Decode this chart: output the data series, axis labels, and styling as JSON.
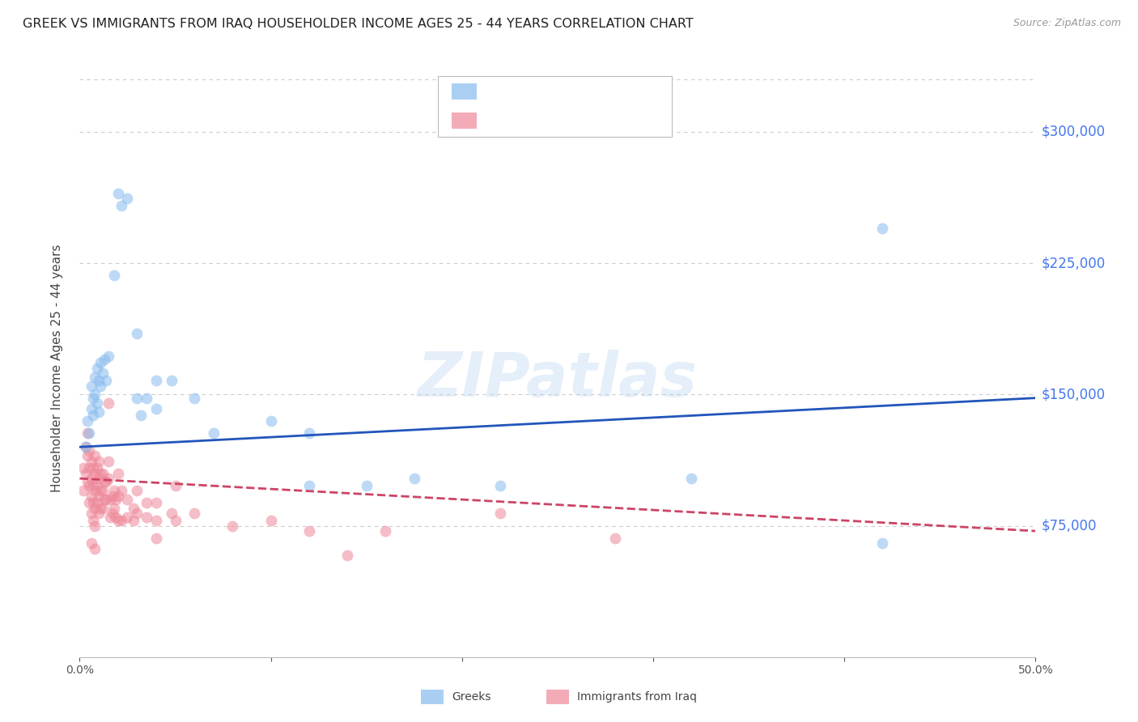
{
  "title": "GREEK VS IMMIGRANTS FROM IRAQ HOUSEHOLDER INCOME AGES 25 - 44 YEARS CORRELATION CHART",
  "source": "Source: ZipAtlas.com",
  "ylabel": "Householder Income Ages 25 - 44 years",
  "ytick_labels": [
    "$75,000",
    "$150,000",
    "$225,000",
    "$300,000"
  ],
  "ytick_values": [
    75000,
    150000,
    225000,
    300000
  ],
  "ylim": [
    0,
    330000
  ],
  "xlim": [
    0.0,
    0.5
  ],
  "background_color": "#ffffff",
  "grid_color": "#cccccc",
  "right_label_color": "#4477ee",
  "greeks_color": "#88bbee",
  "iraq_color": "#ee8899",
  "greeks_line_color": "#2255bb",
  "iraq_line_color": "#cc4466",
  "title_fontsize": 11.5,
  "source_fontsize": 9,
  "tick_label_fontsize": 10,
  "ylabel_fontsize": 11,
  "legend_fontsize": 12,
  "scatter_size": 100,
  "scatter_alpha": 0.55,
  "line_width": 2.0,
  "greeks_points": [
    [
      0.003,
      120000
    ],
    [
      0.004,
      135000
    ],
    [
      0.005,
      128000
    ],
    [
      0.006,
      142000
    ],
    [
      0.006,
      155000
    ],
    [
      0.007,
      148000
    ],
    [
      0.007,
      138000
    ],
    [
      0.008,
      160000
    ],
    [
      0.008,
      150000
    ],
    [
      0.009,
      165000
    ],
    [
      0.009,
      145000
    ],
    [
      0.01,
      158000
    ],
    [
      0.01,
      140000
    ],
    [
      0.011,
      168000
    ],
    [
      0.011,
      155000
    ],
    [
      0.012,
      162000
    ],
    [
      0.013,
      170000
    ],
    [
      0.014,
      158000
    ],
    [
      0.015,
      172000
    ],
    [
      0.02,
      265000
    ],
    [
      0.022,
      258000
    ],
    [
      0.025,
      262000
    ],
    [
      0.018,
      218000
    ],
    [
      0.03,
      185000
    ],
    [
      0.03,
      148000
    ],
    [
      0.032,
      138000
    ],
    [
      0.035,
      148000
    ],
    [
      0.04,
      142000
    ],
    [
      0.04,
      158000
    ],
    [
      0.048,
      158000
    ],
    [
      0.06,
      148000
    ],
    [
      0.07,
      128000
    ],
    [
      0.1,
      135000
    ],
    [
      0.12,
      128000
    ],
    [
      0.12,
      98000
    ],
    [
      0.15,
      98000
    ],
    [
      0.175,
      102000
    ],
    [
      0.22,
      98000
    ],
    [
      0.32,
      102000
    ],
    [
      0.42,
      65000
    ],
    [
      0.42,
      245000
    ]
  ],
  "iraq_points": [
    [
      0.002,
      108000
    ],
    [
      0.002,
      95000
    ],
    [
      0.003,
      120000
    ],
    [
      0.003,
      105000
    ],
    [
      0.004,
      128000
    ],
    [
      0.004,
      115000
    ],
    [
      0.004,
      100000
    ],
    [
      0.005,
      118000
    ],
    [
      0.005,
      108000
    ],
    [
      0.005,
      98000
    ],
    [
      0.005,
      88000
    ],
    [
      0.006,
      112000
    ],
    [
      0.006,
      102000
    ],
    [
      0.006,
      92000
    ],
    [
      0.006,
      82000
    ],
    [
      0.006,
      65000
    ],
    [
      0.007,
      108000
    ],
    [
      0.007,
      98000
    ],
    [
      0.007,
      88000
    ],
    [
      0.007,
      78000
    ],
    [
      0.008,
      115000
    ],
    [
      0.008,
      105000
    ],
    [
      0.008,
      95000
    ],
    [
      0.008,
      85000
    ],
    [
      0.008,
      75000
    ],
    [
      0.008,
      62000
    ],
    [
      0.009,
      108000
    ],
    [
      0.009,
      98000
    ],
    [
      0.009,
      88000
    ],
    [
      0.01,
      112000
    ],
    [
      0.01,
      102000
    ],
    [
      0.01,
      92000
    ],
    [
      0.01,
      82000
    ],
    [
      0.011,
      105000
    ],
    [
      0.011,
      95000
    ],
    [
      0.011,
      85000
    ],
    [
      0.012,
      105000
    ],
    [
      0.012,
      95000
    ],
    [
      0.012,
      85000
    ],
    [
      0.013,
      100000
    ],
    [
      0.013,
      90000
    ],
    [
      0.014,
      100000
    ],
    [
      0.014,
      90000
    ],
    [
      0.015,
      145000
    ],
    [
      0.015,
      112000
    ],
    [
      0.015,
      102000
    ],
    [
      0.016,
      90000
    ],
    [
      0.016,
      80000
    ],
    [
      0.017,
      92000
    ],
    [
      0.017,
      82000
    ],
    [
      0.018,
      95000
    ],
    [
      0.018,
      85000
    ],
    [
      0.019,
      90000
    ],
    [
      0.019,
      80000
    ],
    [
      0.02,
      105000
    ],
    [
      0.02,
      92000
    ],
    [
      0.02,
      78000
    ],
    [
      0.022,
      95000
    ],
    [
      0.022,
      78000
    ],
    [
      0.025,
      90000
    ],
    [
      0.025,
      80000
    ],
    [
      0.028,
      85000
    ],
    [
      0.028,
      78000
    ],
    [
      0.03,
      95000
    ],
    [
      0.03,
      82000
    ],
    [
      0.035,
      88000
    ],
    [
      0.035,
      80000
    ],
    [
      0.04,
      88000
    ],
    [
      0.04,
      78000
    ],
    [
      0.04,
      68000
    ],
    [
      0.048,
      82000
    ],
    [
      0.05,
      98000
    ],
    [
      0.05,
      78000
    ],
    [
      0.06,
      82000
    ],
    [
      0.08,
      75000
    ],
    [
      0.1,
      78000
    ],
    [
      0.12,
      72000
    ],
    [
      0.14,
      58000
    ],
    [
      0.16,
      72000
    ],
    [
      0.22,
      82000
    ],
    [
      0.28,
      68000
    ]
  ],
  "greek_line_x": [
    0.0,
    0.5
  ],
  "greek_line_y": [
    120000,
    148000
  ],
  "iraq_line_x": [
    0.0,
    0.5
  ],
  "iraq_line_y": [
    102000,
    72000
  ]
}
